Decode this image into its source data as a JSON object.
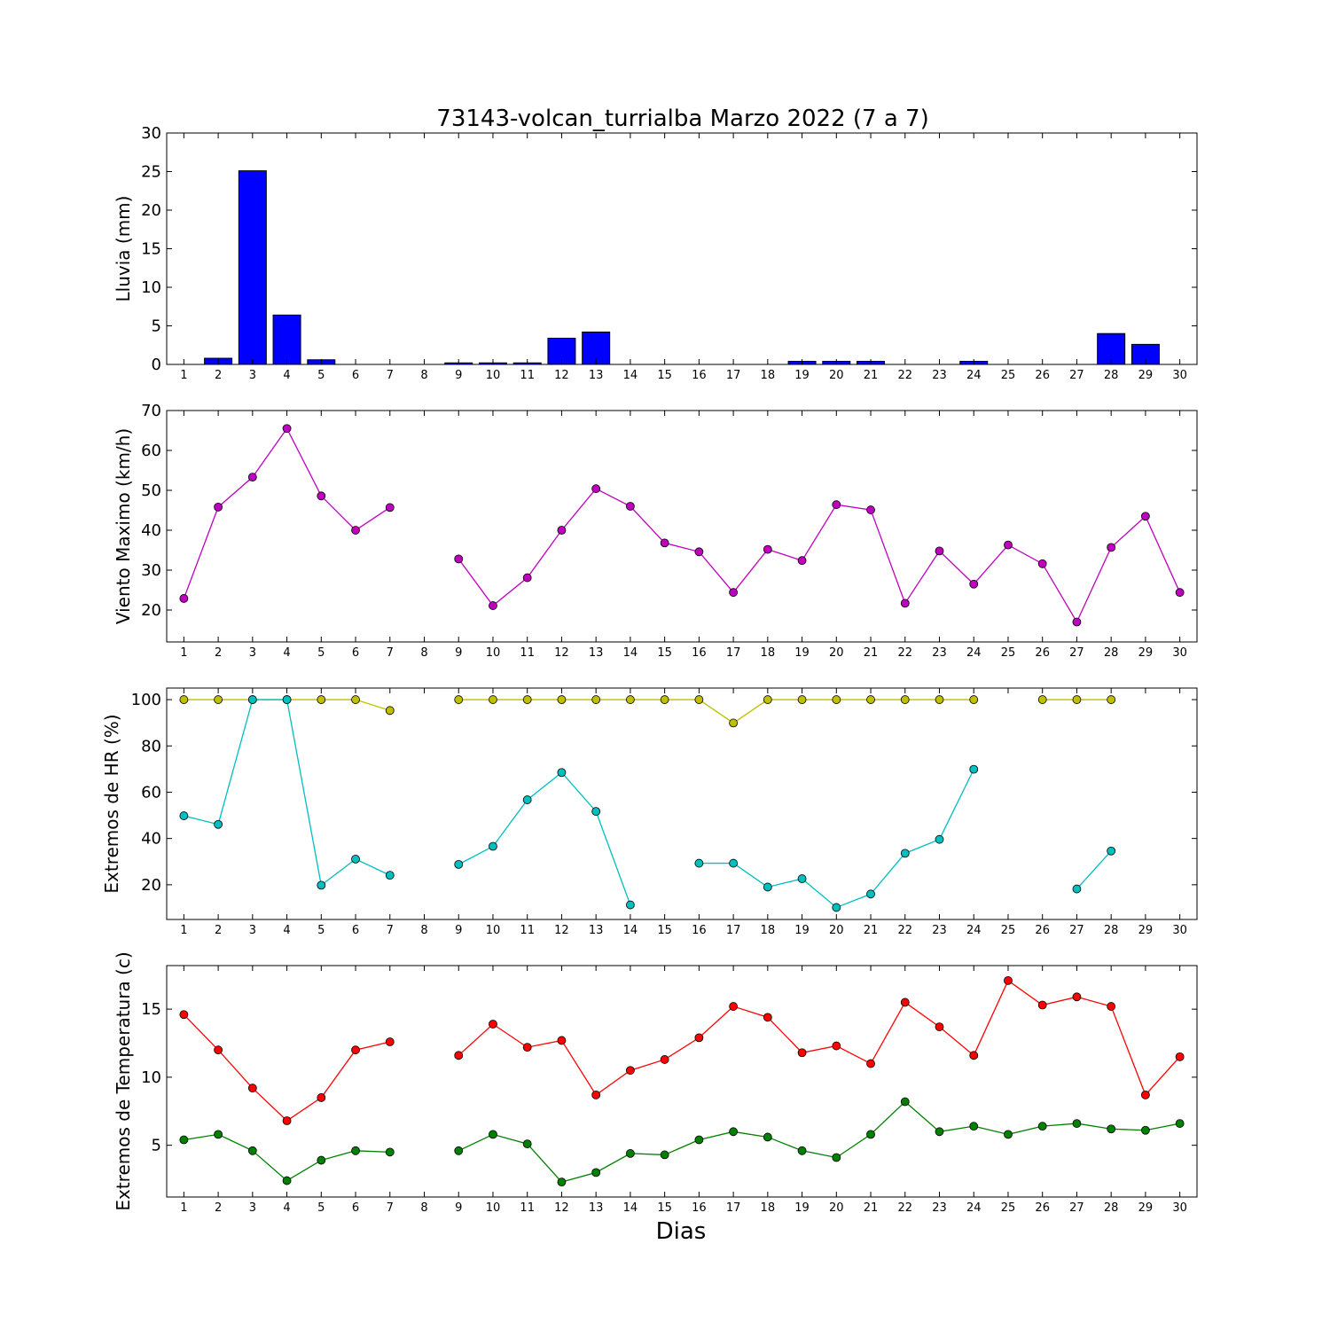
{
  "chart_data": {
    "type": "multi-panel",
    "title": "73143-volcan_turrialba Marzo 2022  (7 a 7)",
    "xlabel": "Dias",
    "days": [
      1,
      2,
      3,
      4,
      5,
      6,
      7,
      8,
      9,
      10,
      11,
      12,
      13,
      14,
      15,
      16,
      17,
      18,
      19,
      20,
      21,
      22,
      23,
      24,
      25,
      26,
      27,
      28,
      29,
      30
    ],
    "panels": [
      {
        "id": "lluvia",
        "type": "bar",
        "ylabel": "Lluvia (mm)",
        "ylim": [
          0,
          30
        ],
        "yticks": [
          0,
          5,
          10,
          15,
          20,
          25,
          30
        ],
        "series": [
          {
            "color": "#0000ff",
            "values": [
              0.0,
              0.8,
              25.1,
              6.4,
              0.6,
              0.0,
              0.0,
              null,
              0.2,
              0.2,
              0.2,
              3.4,
              4.2,
              0.0,
              0.0,
              0.0,
              0.0,
              0.0,
              0.4,
              0.4,
              0.4,
              0.0,
              0.0,
              0.4,
              0.0,
              0.0,
              0.0,
              4.0,
              2.6,
              0.0
            ]
          }
        ]
      },
      {
        "id": "viento",
        "type": "line",
        "ylabel": "Viento Maximo (km/h)",
        "ylim": [
          12,
          70
        ],
        "yticks": [
          20,
          30,
          40,
          50,
          60,
          70
        ],
        "series": [
          {
            "color": "#bf00bf",
            "values": [
              22.9,
              45.8,
              53.3,
              65.5,
              48.6,
              40.0,
              45.7,
              null,
              32.8,
              21.1,
              28.1,
              40.0,
              50.4,
              46.0,
              36.8,
              34.6,
              24.4,
              35.2,
              32.4,
              46.4,
              45.1,
              21.7,
              34.8,
              26.5,
              36.3,
              31.6,
              17.0,
              35.7,
              43.5,
              24.4
            ]
          }
        ]
      },
      {
        "id": "hr",
        "type": "line",
        "ylabel": "Extremos de HR (%)",
        "ylim": [
          5,
          105
        ],
        "yticks": [
          20,
          40,
          60,
          80,
          100
        ],
        "series": [
          {
            "color": "#bfbf00",
            "values": [
              100,
              100,
              100,
              100,
              100,
              100,
              95.3,
              null,
              100,
              100,
              100,
              100,
              100,
              100,
              100,
              100,
              89.9,
              100,
              100,
              100,
              100,
              100,
              100,
              100,
              null,
              100,
              100,
              100,
              null,
              null
            ]
          },
          {
            "color": "#00bfbf",
            "values": [
              49.8,
              46.1,
              100,
              100,
              19.8,
              31.1,
              24.1,
              null,
              28.8,
              36.6,
              56.7,
              68.5,
              51.7,
              11.3,
              null,
              29.3,
              29.3,
              19.0,
              22.6,
              10.2,
              16.0,
              33.6,
              39.6,
              69.9,
              null,
              null,
              18.2,
              34.6,
              null,
              null
            ]
          }
        ]
      },
      {
        "id": "temperatura",
        "type": "line",
        "ylabel": "Extremos de Temperatura (c)",
        "ylim": [
          1.2,
          18.2
        ],
        "yticks": [
          5,
          10,
          15
        ],
        "series": [
          {
            "color": "#ff0000",
            "values": [
              14.6,
              12.0,
              9.2,
              6.8,
              8.5,
              12.0,
              12.6,
              null,
              11.6,
              13.9,
              12.2,
              12.7,
              8.7,
              10.5,
              11.3,
              12.9,
              15.2,
              14.4,
              11.8,
              12.3,
              11.0,
              15.5,
              13.7,
              11.6,
              17.1,
              15.3,
              15.9,
              15.2,
              8.7,
              11.5
            ]
          },
          {
            "color": "#008000",
            "values": [
              5.4,
              5.8,
              4.6,
              2.4,
              3.9,
              4.6,
              4.5,
              null,
              4.6,
              5.8,
              5.1,
              2.3,
              3.0,
              4.4,
              4.3,
              5.4,
              6.0,
              5.6,
              4.6,
              4.1,
              5.8,
              8.2,
              6.0,
              6.4,
              5.8,
              6.4,
              6.6,
              6.2,
              6.1,
              6.6
            ]
          }
        ]
      }
    ]
  }
}
